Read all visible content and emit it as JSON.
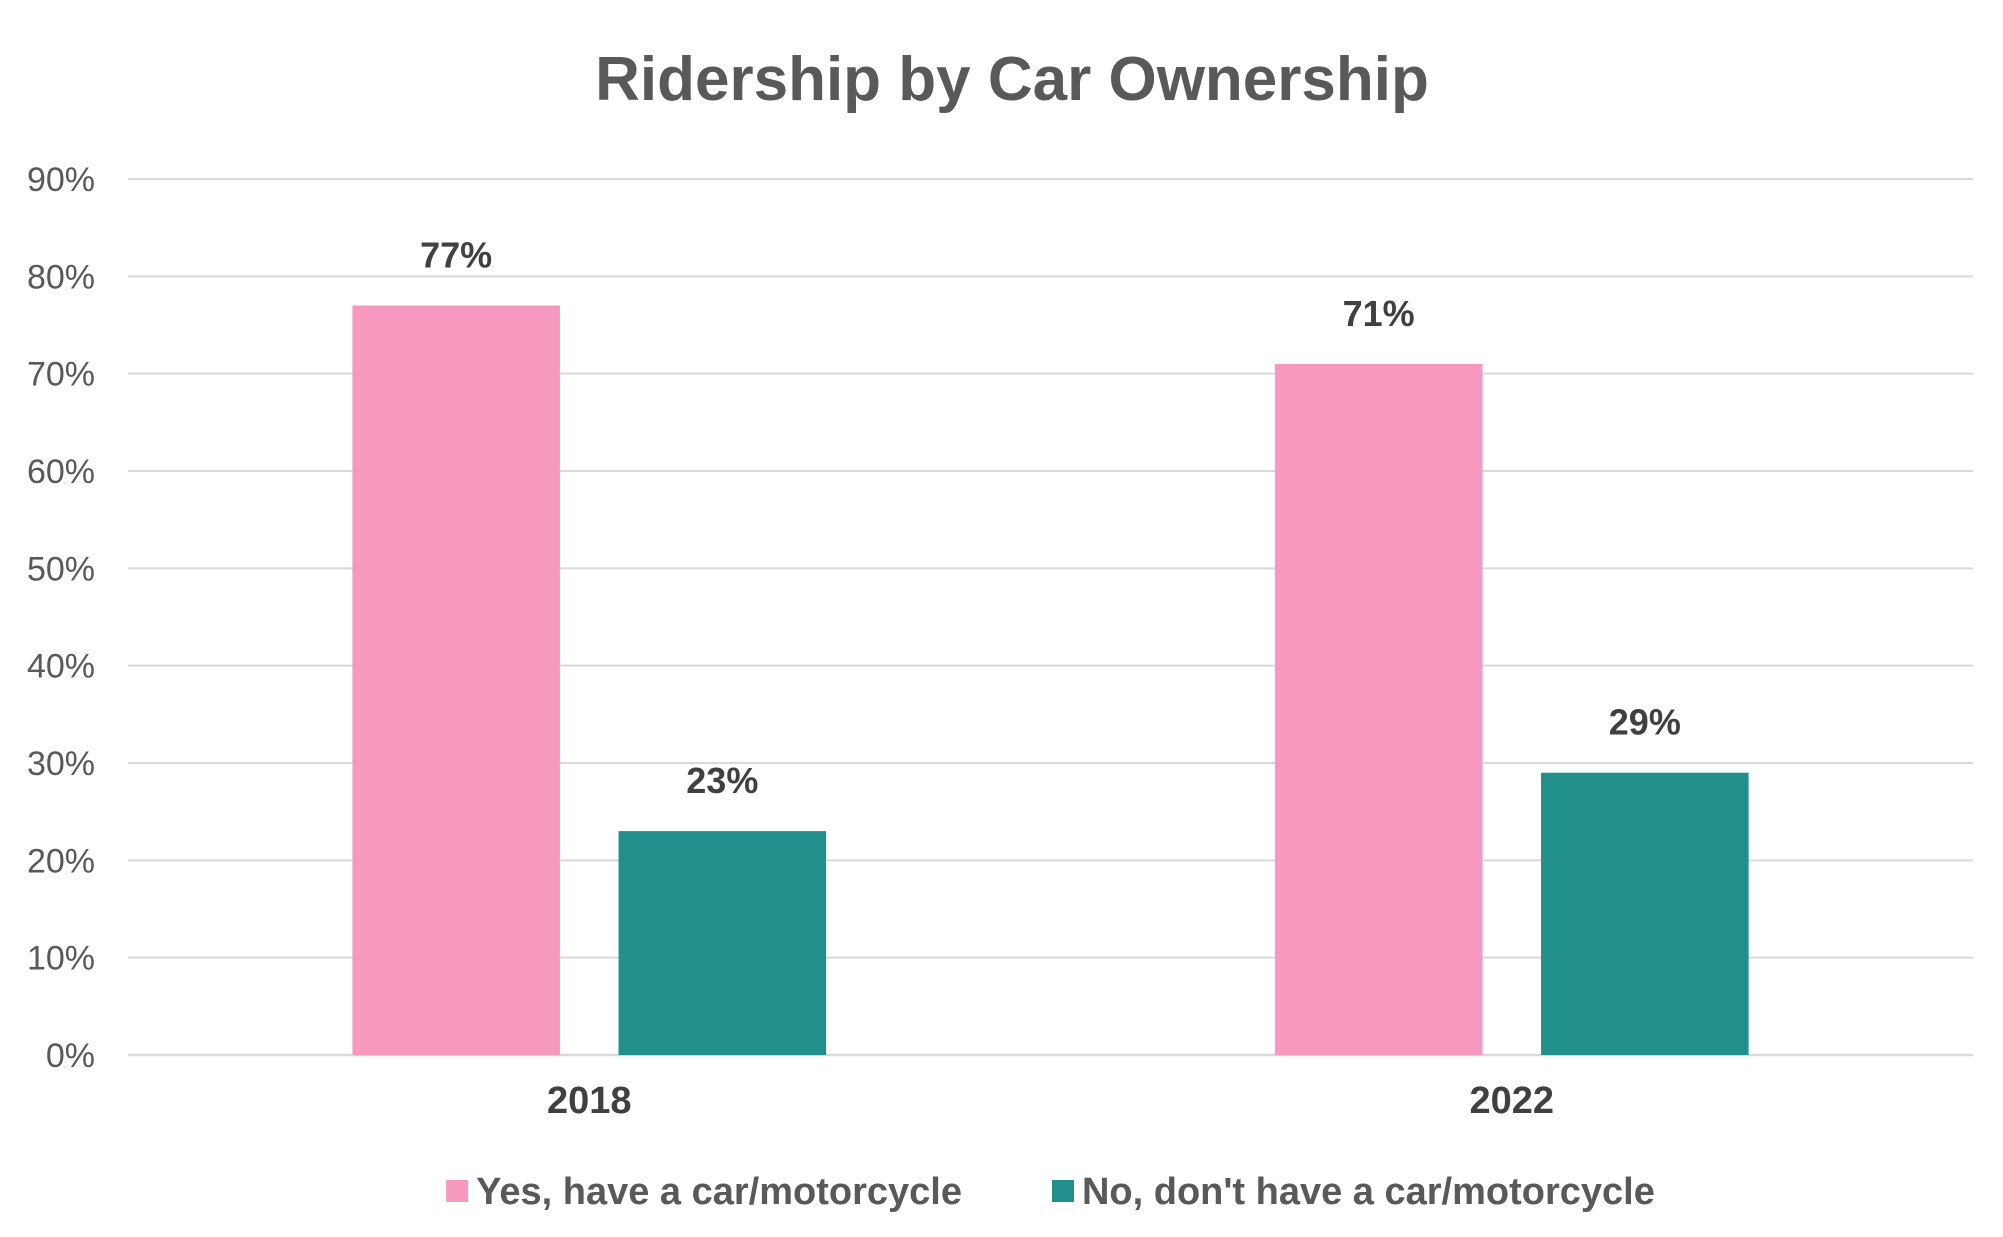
{
  "chart_data": {
    "type": "bar",
    "title": "Ridership by Car Ownership",
    "categories": [
      "2018",
      "2022"
    ],
    "series": [
      {
        "name": "Yes, have a car/motorcycle",
        "values": [
          77,
          71
        ],
        "labels": [
          "77%",
          "71%"
        ],
        "color": "#F799BE"
      },
      {
        "name": "No, don't have a car/motorcycle",
        "values": [
          23,
          29
        ],
        "labels": [
          "23%",
          "29%"
        ],
        "color": "#218F8A"
      }
    ],
    "ylim": [
      0,
      90
    ],
    "yticks": [
      0,
      10,
      20,
      30,
      40,
      50,
      60,
      70,
      80,
      90
    ],
    "ytick_labels": [
      "0%",
      "10%",
      "20%",
      "30%",
      "40%",
      "50%",
      "60%",
      "70%",
      "80%",
      "90%"
    ],
    "xlabel": "",
    "ylabel": "",
    "grid": true,
    "legend_position": "bottom",
    "colors": {
      "grid": "#D9D9D9",
      "axis": "#D9D9D9"
    }
  }
}
